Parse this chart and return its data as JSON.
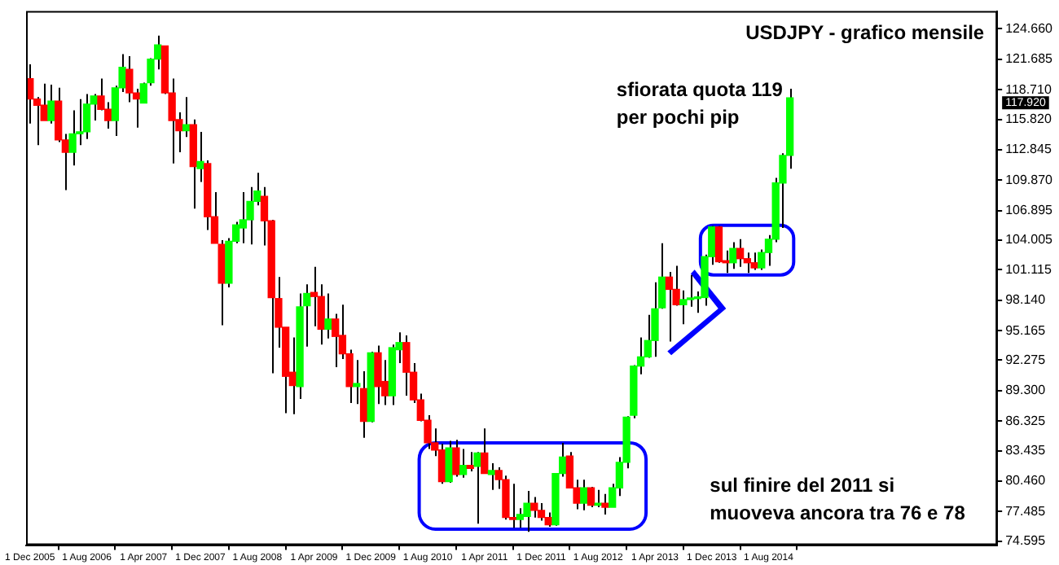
{
  "chart_data": {
    "type": "candlestick",
    "title": "USDJPY - grafico mensile",
    "annotations": [
      "117.920",
      "sfiorata quota 119\nper pochi pip",
      "sul finire del 2011 si\nmuoveva ancora tra 76 e 78"
    ],
    "x": [
      "2005-12",
      "2006-01",
      "2006-02",
      "2006-03",
      "2006-04",
      "2006-05",
      "2006-06",
      "2006-07",
      "2006-08",
      "2006-09",
      "2006-10",
      "2006-11",
      "2006-12",
      "2007-01",
      "2007-02",
      "2007-03",
      "2007-04",
      "2007-05",
      "2007-06",
      "2007-07",
      "2007-08",
      "2007-09",
      "2007-10",
      "2007-11",
      "2007-12",
      "2008-01",
      "2008-02",
      "2008-03",
      "2008-04",
      "2008-05",
      "2008-06",
      "2008-07",
      "2008-08",
      "2008-09",
      "2008-10",
      "2008-11",
      "2008-12",
      "2009-01",
      "2009-02",
      "2009-03",
      "2009-04",
      "2009-05",
      "2009-06",
      "2009-07",
      "2009-08",
      "2009-09",
      "2009-10",
      "2009-11",
      "2009-12",
      "2010-01",
      "2010-02",
      "2010-03",
      "2010-04",
      "2010-05",
      "2010-06",
      "2010-07",
      "2010-08",
      "2010-09",
      "2010-10",
      "2010-11",
      "2010-12",
      "2011-01",
      "2011-02",
      "2011-03",
      "2011-04",
      "2011-05",
      "2011-06",
      "2011-07",
      "2011-08",
      "2011-09",
      "2011-10",
      "2011-11",
      "2011-12",
      "2012-01",
      "2012-02",
      "2012-03",
      "2012-04",
      "2012-05",
      "2012-06",
      "2012-07",
      "2012-08",
      "2012-09",
      "2012-10",
      "2012-11",
      "2012-12",
      "2013-01",
      "2013-02",
      "2013-03",
      "2013-04",
      "2013-05",
      "2013-06",
      "2013-07",
      "2013-08",
      "2013-09",
      "2013-10",
      "2013-11",
      "2013-12",
      "2014-01",
      "2014-02",
      "2014-03",
      "2014-04",
      "2014-05",
      "2014-06",
      "2014-07",
      "2014-08",
      "2014-09",
      "2014-10",
      "2014-11"
    ],
    "ohlc": [
      [
        119.8,
        121.2,
        115.4,
        117.8
      ],
      [
        117.8,
        118.0,
        113.3,
        117.2
      ],
      [
        117.2,
        119.3,
        115.7,
        115.7
      ],
      [
        115.7,
        119.2,
        115.4,
        117.6
      ],
      [
        117.6,
        118.9,
        113.6,
        113.8
      ],
      [
        113.8,
        114.4,
        108.9,
        112.6
      ],
      [
        112.6,
        116.7,
        111.3,
        114.4
      ],
      [
        114.4,
        117.8,
        113.3,
        114.6
      ],
      [
        114.6,
        118.3,
        113.9,
        117.3
      ],
      [
        117.3,
        118.3,
        115.7,
        118.1
      ],
      [
        118.1,
        119.8,
        116.7,
        116.8
      ],
      [
        116.8,
        117.5,
        114.9,
        115.7
      ],
      [
        115.7,
        119.1,
        114.2,
        118.9
      ],
      [
        118.9,
        122.2,
        118.5,
        120.9
      ],
      [
        120.7,
        122.0,
        117.5,
        118.4
      ],
      [
        118.4,
        118.8,
        115.0,
        117.8
      ],
      [
        117.4,
        119.4,
        117.4,
        119.3
      ],
      [
        119.4,
        121.8,
        119.1,
        121.7
      ],
      [
        121.7,
        124.0,
        120.7,
        123.1
      ],
      [
        123.0,
        123.0,
        118.3,
        118.4
      ],
      [
        118.4,
        119.8,
        111.5,
        115.7
      ],
      [
        115.8,
        116.5,
        112.6,
        114.7
      ],
      [
        114.7,
        118.0,
        114.1,
        115.3
      ],
      [
        115.3,
        115.8,
        107.1,
        111.2
      ],
      [
        111.0,
        114.6,
        109.7,
        111.7
      ],
      [
        111.5,
        111.8,
        105.0,
        106.3
      ],
      [
        106.3,
        108.7,
        103.7,
        103.7
      ],
      [
        103.6,
        104.0,
        95.7,
        99.8
      ],
      [
        99.8,
        104.2,
        99.4,
        103.9
      ],
      [
        103.9,
        105.8,
        103.7,
        105.5
      ],
      [
        105.2,
        108.7,
        103.7,
        106.0
      ],
      [
        106.0,
        109.2,
        103.6,
        107.8
      ],
      [
        107.8,
        110.6,
        107.4,
        108.8
      ],
      [
        108.3,
        109.2,
        103.5,
        105.9
      ],
      [
        105.9,
        106.0,
        91.0,
        98.4
      ],
      [
        98.3,
        100.4,
        93.5,
        95.5
      ],
      [
        95.5,
        95.5,
        87.1,
        90.7
      ],
      [
        91.1,
        94.5,
        87.0,
        89.8
      ],
      [
        89.7,
        98.8,
        88.5,
        97.5
      ],
      [
        97.6,
        99.7,
        93.6,
        98.8
      ],
      [
        98.9,
        101.4,
        95.6,
        98.5
      ],
      [
        98.5,
        99.7,
        93.8,
        95.3
      ],
      [
        95.3,
        98.8,
        94.4,
        96.3
      ],
      [
        96.3,
        96.8,
        91.6,
        94.6
      ],
      [
        94.7,
        97.7,
        92.4,
        92.9
      ],
      [
        92.9,
        93.3,
        88.1,
        89.7
      ],
      [
        89.7,
        92.3,
        88.0,
        90.0
      ],
      [
        89.5,
        91.2,
        84.7,
        86.3
      ],
      [
        86.3,
        93.1,
        86.2,
        93.0
      ],
      [
        93.0,
        93.7,
        88.0,
        89.7
      ],
      [
        90.2,
        92.3,
        87.9,
        88.8
      ],
      [
        88.8,
        93.8,
        87.9,
        93.5
      ],
      [
        93.3,
        95.0,
        92.0,
        94.0
      ],
      [
        94.0,
        94.7,
        88.8,
        91.1
      ],
      [
        91.1,
        92.0,
        88.1,
        88.4
      ],
      [
        88.4,
        89.0,
        86.3,
        86.4
      ],
      [
        86.4,
        86.9,
        83.6,
        84.2
      ],
      [
        84.2,
        85.6,
        82.9,
        83.5
      ],
      [
        83.5,
        84.1,
        80.2,
        80.4
      ],
      [
        80.4,
        84.4,
        80.3,
        83.7
      ],
      [
        83.7,
        84.5,
        80.9,
        81.1
      ],
      [
        81.1,
        83.6,
        80.8,
        82.0
      ],
      [
        82.0,
        83.3,
        81.4,
        81.7
      ],
      [
        81.9,
        83.3,
        76.3,
        83.2
      ],
      [
        83.2,
        85.6,
        81.2,
        81.2
      ],
      [
        81.1,
        82.2,
        79.6,
        81.5
      ],
      [
        81.5,
        81.8,
        79.7,
        80.6
      ],
      [
        80.6,
        81.0,
        76.7,
        76.9
      ],
      [
        76.9,
        80.2,
        75.9,
        76.7
      ],
      [
        76.7,
        77.8,
        75.9,
        77.2
      ],
      [
        77.0,
        79.5,
        75.5,
        78.3
      ],
      [
        78.3,
        78.9,
        76.9,
        77.6
      ],
      [
        77.6,
        78.3,
        76.6,
        76.9
      ],
      [
        76.9,
        77.4,
        76.0,
        76.2
      ],
      [
        76.2,
        81.2,
        76.1,
        81.2
      ],
      [
        81.2,
        84.2,
        80.9,
        82.8
      ],
      [
        82.9,
        83.3,
        79.8,
        79.8
      ],
      [
        79.8,
        80.6,
        77.7,
        78.3
      ],
      [
        78.3,
        80.6,
        77.6,
        79.8
      ],
      [
        79.8,
        79.9,
        77.9,
        78.1
      ],
      [
        78.1,
        79.6,
        77.9,
        78.3
      ],
      [
        78.3,
        79.2,
        77.2,
        77.9
      ],
      [
        77.9,
        80.2,
        77.9,
        79.8
      ],
      [
        79.8,
        82.8,
        79.0,
        82.3
      ],
      [
        82.3,
        86.8,
        81.7,
        86.7
      ],
      [
        86.9,
        91.8,
        86.6,
        91.7
      ],
      [
        91.7,
        94.5,
        90.9,
        92.6
      ],
      [
        92.6,
        96.7,
        92.5,
        94.2
      ],
      [
        94.2,
        99.9,
        92.6,
        97.3
      ],
      [
        97.4,
        103.7,
        97.3,
        100.4
      ],
      [
        100.4,
        100.9,
        94.1,
        99.2
      ],
      [
        99.2,
        101.5,
        97.6,
        97.7
      ],
      [
        97.7,
        99.1,
        95.8,
        98.2
      ],
      [
        98.2,
        100.6,
        97.5,
        98.3
      ],
      [
        98.3,
        99.0,
        96.9,
        98.4
      ],
      [
        98.4,
        102.6,
        97.6,
        102.4
      ],
      [
        102.4,
        105.4,
        101.6,
        105.3
      ],
      [
        105.3,
        105.4,
        101.8,
        101.9
      ],
      [
        102.0,
        103.0,
        100.8,
        101.8
      ],
      [
        101.8,
        103.8,
        101.2,
        103.2
      ],
      [
        103.2,
        104.1,
        101.4,
        102.2
      ],
      [
        102.2,
        102.8,
        100.8,
        101.8
      ],
      [
        101.8,
        102.8,
        101.1,
        101.3
      ],
      [
        101.3,
        103.1,
        101.1,
        102.8
      ],
      [
        102.8,
        104.5,
        101.5,
        104.1
      ],
      [
        104.1,
        110.1,
        103.8,
        109.6
      ],
      [
        109.6,
        112.5,
        105.2,
        112.3
      ],
      [
        112.3,
        118.8,
        111.0,
        117.92
      ]
    ],
    "colors": [
      "#ff0000",
      "#ff0000",
      "#ff0000",
      "#00ff00",
      "#ff0000",
      "#ff0000",
      "#00ff00",
      "#00ff00",
      "#00ff00",
      "#00ff00",
      "#ff0000",
      "#ff0000",
      "#00ff00",
      "#00ff00",
      "#ff0000",
      "#ff0000",
      "#00ff00",
      "#00ff00",
      "#00ff00",
      "#ff0000",
      "#ff0000",
      "#ff0000",
      "#00ff00",
      "#ff0000",
      "#00ff00",
      "#ff0000",
      "#ff0000",
      "#ff0000",
      "#00ff00",
      "#00ff00",
      "#00ff00",
      "#00ff00",
      "#00ff00",
      "#ff0000",
      "#ff0000",
      "#ff0000",
      "#ff0000",
      "#ff0000",
      "#00ff00",
      "#00ff00",
      "#ff0000",
      "#ff0000",
      "#00ff00",
      "#ff0000",
      "#ff0000",
      "#ff0000",
      "#00ff00",
      "#ff0000",
      "#00ff00",
      "#ff0000",
      "#ff0000",
      "#00ff00",
      "#00ff00",
      "#ff0000",
      "#ff0000",
      "#ff0000",
      "#ff0000",
      "#ff0000",
      "#ff0000",
      "#00ff00",
      "#ff0000",
      "#00ff00",
      "#ff0000",
      "#00ff00",
      "#ff0000",
      "#00ff00",
      "#ff0000",
      "#ff0000",
      "#ff0000",
      "#00ff00",
      "#00ff00",
      "#ff0000",
      "#ff0000",
      "#ff0000",
      "#00ff00",
      "#00ff00",
      "#ff0000",
      "#ff0000",
      "#00ff00",
      "#ff0000",
      "#00ff00",
      "#ff0000",
      "#00ff00",
      "#00ff00",
      "#00ff00",
      "#00ff00",
      "#00ff00",
      "#00ff00",
      "#00ff00",
      "#00ff00",
      "#ff0000",
      "#ff0000",
      "#00ff00",
      "#00ff00",
      "#00ff00",
      "#00ff00",
      "#00ff00",
      "#ff0000",
      "#ff0000",
      "#00ff00",
      "#ff0000",
      "#ff0000",
      "#ff0000",
      "#00ff00",
      "#00ff00",
      "#00ff00",
      "#00ff00",
      "#00ff00"
    ],
    "xlim": [
      "2005-11-15",
      "2017-04-07"
    ],
    "xticks": [
      {
        "value": "2005-12",
        "label": "1 Dec 2005"
      },
      {
        "value": "2006-08",
        "label": "1 Aug 2006"
      },
      {
        "value": "2007-04",
        "label": "1 Apr 2007"
      },
      {
        "value": "2007-12",
        "label": "1 Dec 2007"
      },
      {
        "value": "2008-08",
        "label": "1 Aug 2008"
      },
      {
        "value": "2009-04",
        "label": "1 Apr 2009"
      },
      {
        "value": "2009-12",
        "label": "1 Dec 2009"
      },
      {
        "value": "2010-08",
        "label": "1 Aug 2010"
      },
      {
        "value": "2011-04",
        "label": "1 Apr 2011"
      },
      {
        "value": "2011-12",
        "label": "1 Dec 2011"
      },
      {
        "value": "2012-08",
        "label": "1 Aug 2012"
      },
      {
        "value": "2013-04",
        "label": "1 Apr 2013"
      },
      {
        "value": "2013-12",
        "label": "1 Dec 2013"
      },
      {
        "value": "2014-08",
        "label": "1 Aug 2014"
      }
    ],
    "ylim": [
      74.2,
      126.4
    ],
    "yticks": [
      {
        "value": 124.66,
        "label": "124.660"
      },
      {
        "value": 121.685,
        "label": "121.685"
      },
      {
        "value": 118.71,
        "label": "118.710"
      },
      {
        "value": 115.82,
        "label": "115.820"
      },
      {
        "value": 112.845,
        "label": "112.845"
      },
      {
        "value": 109.87,
        "label": "109.870"
      },
      {
        "value": 106.895,
        "label": "106.895"
      },
      {
        "value": 104.005,
        "label": "104.005"
      },
      {
        "value": 101.115,
        "label": "101.115"
      },
      {
        "value": 98.14,
        "label": "98.140"
      },
      {
        "value": 95.165,
        "label": "95.165"
      },
      {
        "value": 92.275,
        "label": "92.275"
      },
      {
        "value": 89.3,
        "label": "89.300"
      },
      {
        "value": 86.325,
        "label": "86.325"
      },
      {
        "value": 83.435,
        "label": "83.435"
      },
      {
        "value": 80.46,
        "label": "80.460"
      },
      {
        "value": 77.485,
        "label": "77.485"
      },
      {
        "value": 74.595,
        "label": "74.595"
      }
    ]
  }
}
